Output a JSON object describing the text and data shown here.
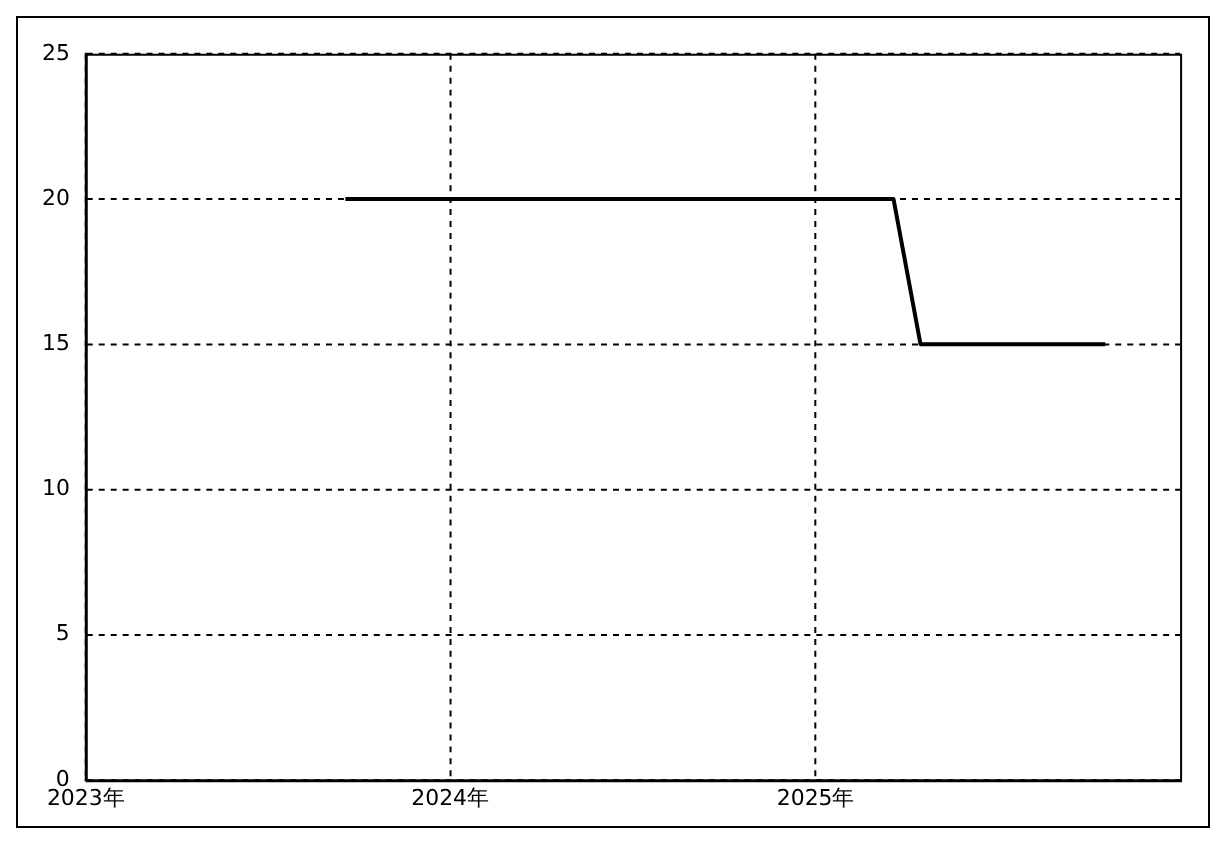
{
  "chart_data": {
    "type": "line",
    "x": [
      "2023-09-18",
      "2025-03-20",
      "2025-04-16",
      "2025-10-18"
    ],
    "series": [
      {
        "color": "#000000",
        "values": [
          20,
          20,
          15,
          15
        ]
      }
    ],
    "xlim": [
      "2023",
      "2026"
    ],
    "xticks": [
      {
        "value": "2023",
        "label": "2023年"
      },
      {
        "value": "2024",
        "label": "2024年"
      },
      {
        "value": "2025",
        "label": "2025年"
      }
    ],
    "ylim": [
      0,
      25
    ],
    "yticks": [
      0,
      5,
      10,
      15,
      20,
      25
    ],
    "grid": true,
    "legend": false,
    "marker": "none",
    "line_style": "solid"
  }
}
